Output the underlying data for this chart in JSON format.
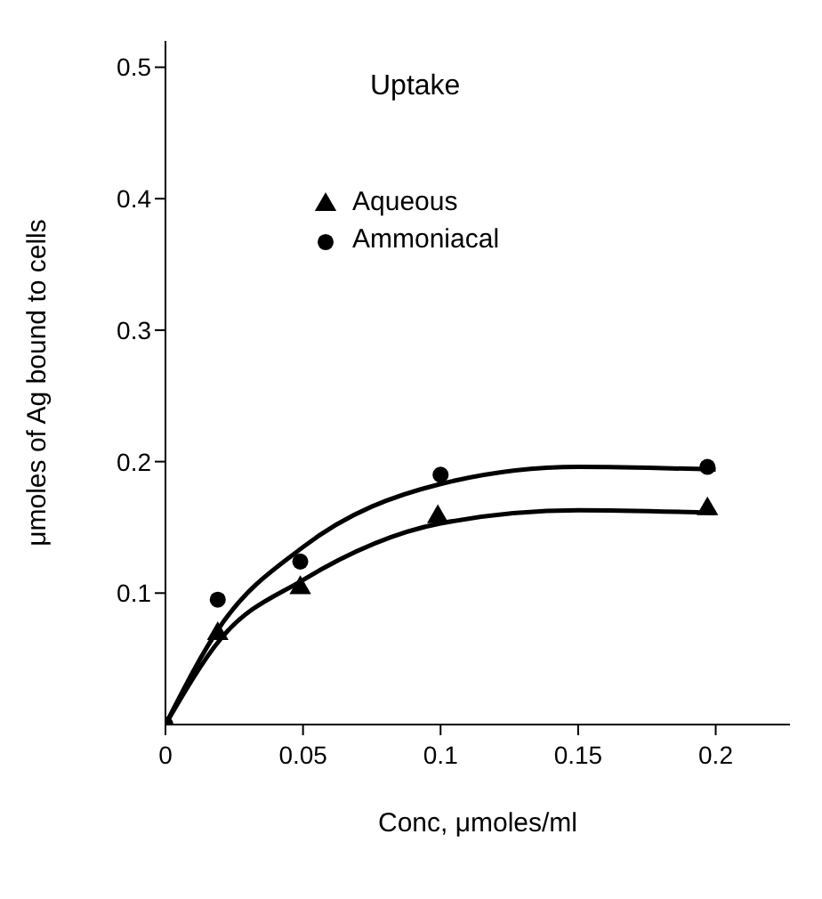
{
  "chart_data": {
    "type": "scatter",
    "title": "Uptake",
    "xlabel": "Conc, μmoles/ml",
    "ylabel": "μmoles of Ag bound to cells",
    "xlim": [
      0,
      0.227
    ],
    "ylim": [
      0,
      0.52
    ],
    "xticks": [
      0,
      0.05,
      0.1,
      0.15,
      0.2
    ],
    "yticks": [
      0.1,
      0.2,
      0.3,
      0.4,
      0.5
    ],
    "grid": false,
    "legend": "top",
    "series": [
      {
        "name": "Aqueous",
        "type": "scatter",
        "marker": "triangle",
        "color": "#000000",
        "x": [
          0.019,
          0.049,
          0.099,
          0.197
        ],
        "values": [
          0.069,
          0.104,
          0.158,
          0.164
        ]
      },
      {
        "name": "Ammoniacal",
        "type": "scatter",
        "marker": "circle",
        "color": "#000000",
        "x": [
          0,
          0.019,
          0.049,
          0.1,
          0.197
        ],
        "values": [
          0,
          0.095,
          0.124,
          0.19,
          0.196
        ]
      },
      {
        "type": "line",
        "marker": "none",
        "color": "#000000",
        "x": [
          0,
          0.02,
          0.05,
          0.1,
          0.15,
          0.2
        ],
        "values": [
          0,
          0.065,
          0.11,
          0.153,
          0.163,
          0.161
        ]
      },
      {
        "type": "line",
        "marker": "none",
        "color": "#000000",
        "x": [
          0,
          0.02,
          0.05,
          0.1,
          0.15,
          0.2
        ],
        "values": [
          0,
          0.075,
          0.135,
          0.183,
          0.196,
          0.194
        ]
      }
    ]
  }
}
